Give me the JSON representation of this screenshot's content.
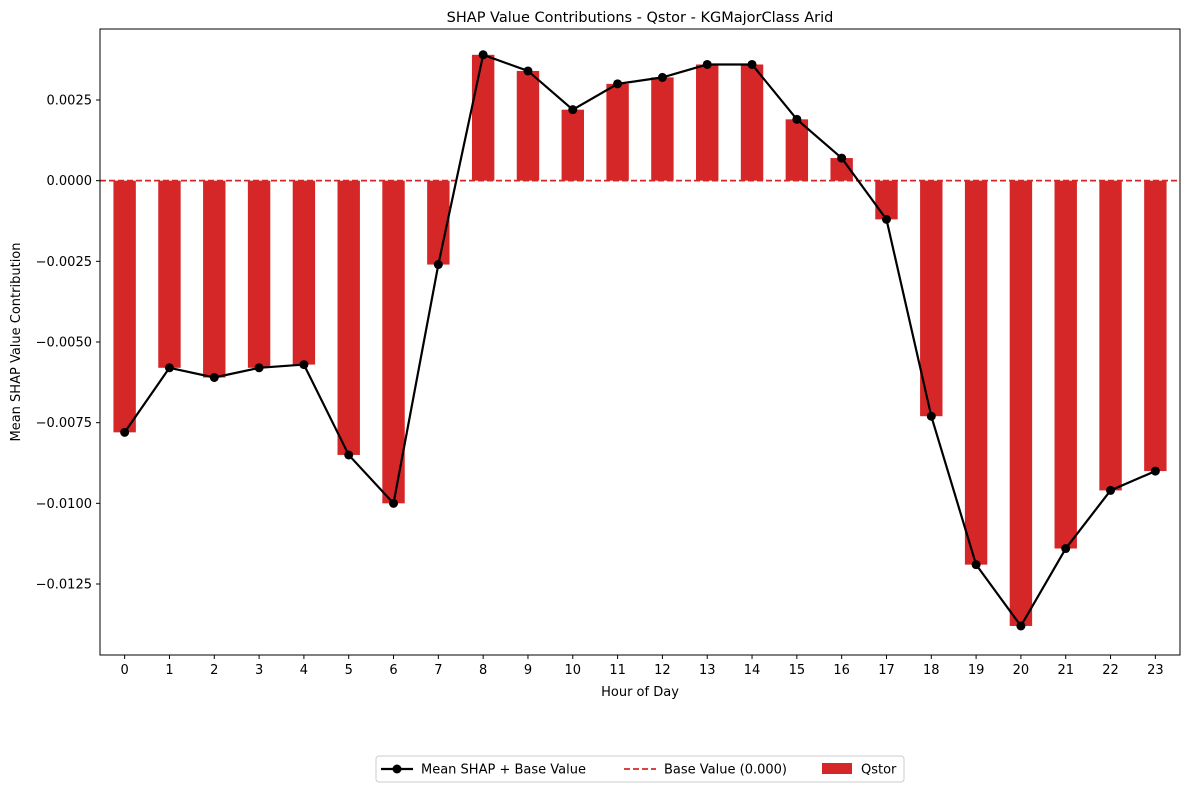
{
  "chart_data": {
    "type": "bar",
    "title": "SHAP Value Contributions - Qstor - KGMajorClass Arid",
    "xlabel": "Hour of Day",
    "ylabel": "Mean SHAP Value Contribution",
    "categories": [
      "0",
      "1",
      "2",
      "3",
      "4",
      "5",
      "6",
      "7",
      "8",
      "9",
      "10",
      "11",
      "12",
      "13",
      "14",
      "15",
      "16",
      "17",
      "18",
      "19",
      "20",
      "21",
      "22",
      "23"
    ],
    "ylim": [
      -0.0147,
      0.0047
    ],
    "y_ticks": [
      0.0025,
      0.0,
      -0.0025,
      -0.005,
      -0.0075,
      -0.01,
      -0.0125
    ],
    "y_tick_labels": [
      "0.0025",
      "0.0000",
      "−0.0025",
      "−0.0050",
      "−0.0075",
      "−0.0100",
      "−0.0125"
    ],
    "grid": false,
    "legend_position": "bottom-center",
    "base_value": 0.0,
    "series": [
      {
        "name": "Qstor",
        "kind": "bar",
        "color": "#d62728",
        "values": [
          -0.0078,
          -0.0058,
          -0.0061,
          -0.0058,
          -0.0057,
          -0.0085,
          -0.01,
          -0.0026,
          0.0039,
          0.0034,
          0.0022,
          0.003,
          0.0032,
          0.0036,
          0.0036,
          0.0019,
          0.0007,
          -0.0012,
          -0.0073,
          -0.0119,
          -0.0138,
          -0.0114,
          -0.0096,
          -0.009
        ]
      },
      {
        "name": "Mean SHAP + Base Value",
        "kind": "line",
        "color": "#000000",
        "values": [
          -0.0078,
          -0.0058,
          -0.0061,
          -0.0058,
          -0.0057,
          -0.0085,
          -0.01,
          -0.0026,
          0.0039,
          0.0034,
          0.0022,
          0.003,
          0.0032,
          0.0036,
          0.0036,
          0.0019,
          0.0007,
          -0.0012,
          -0.0073,
          -0.0119,
          -0.0138,
          -0.0114,
          -0.0096,
          -0.009
        ]
      },
      {
        "name": "Base Value (0.000)",
        "kind": "hline",
        "color": "#d62728",
        "value": 0.0
      }
    ],
    "legend": {
      "entries": [
        "Mean SHAP + Base Value",
        "Base Value (0.000)",
        "Qstor"
      ]
    }
  }
}
